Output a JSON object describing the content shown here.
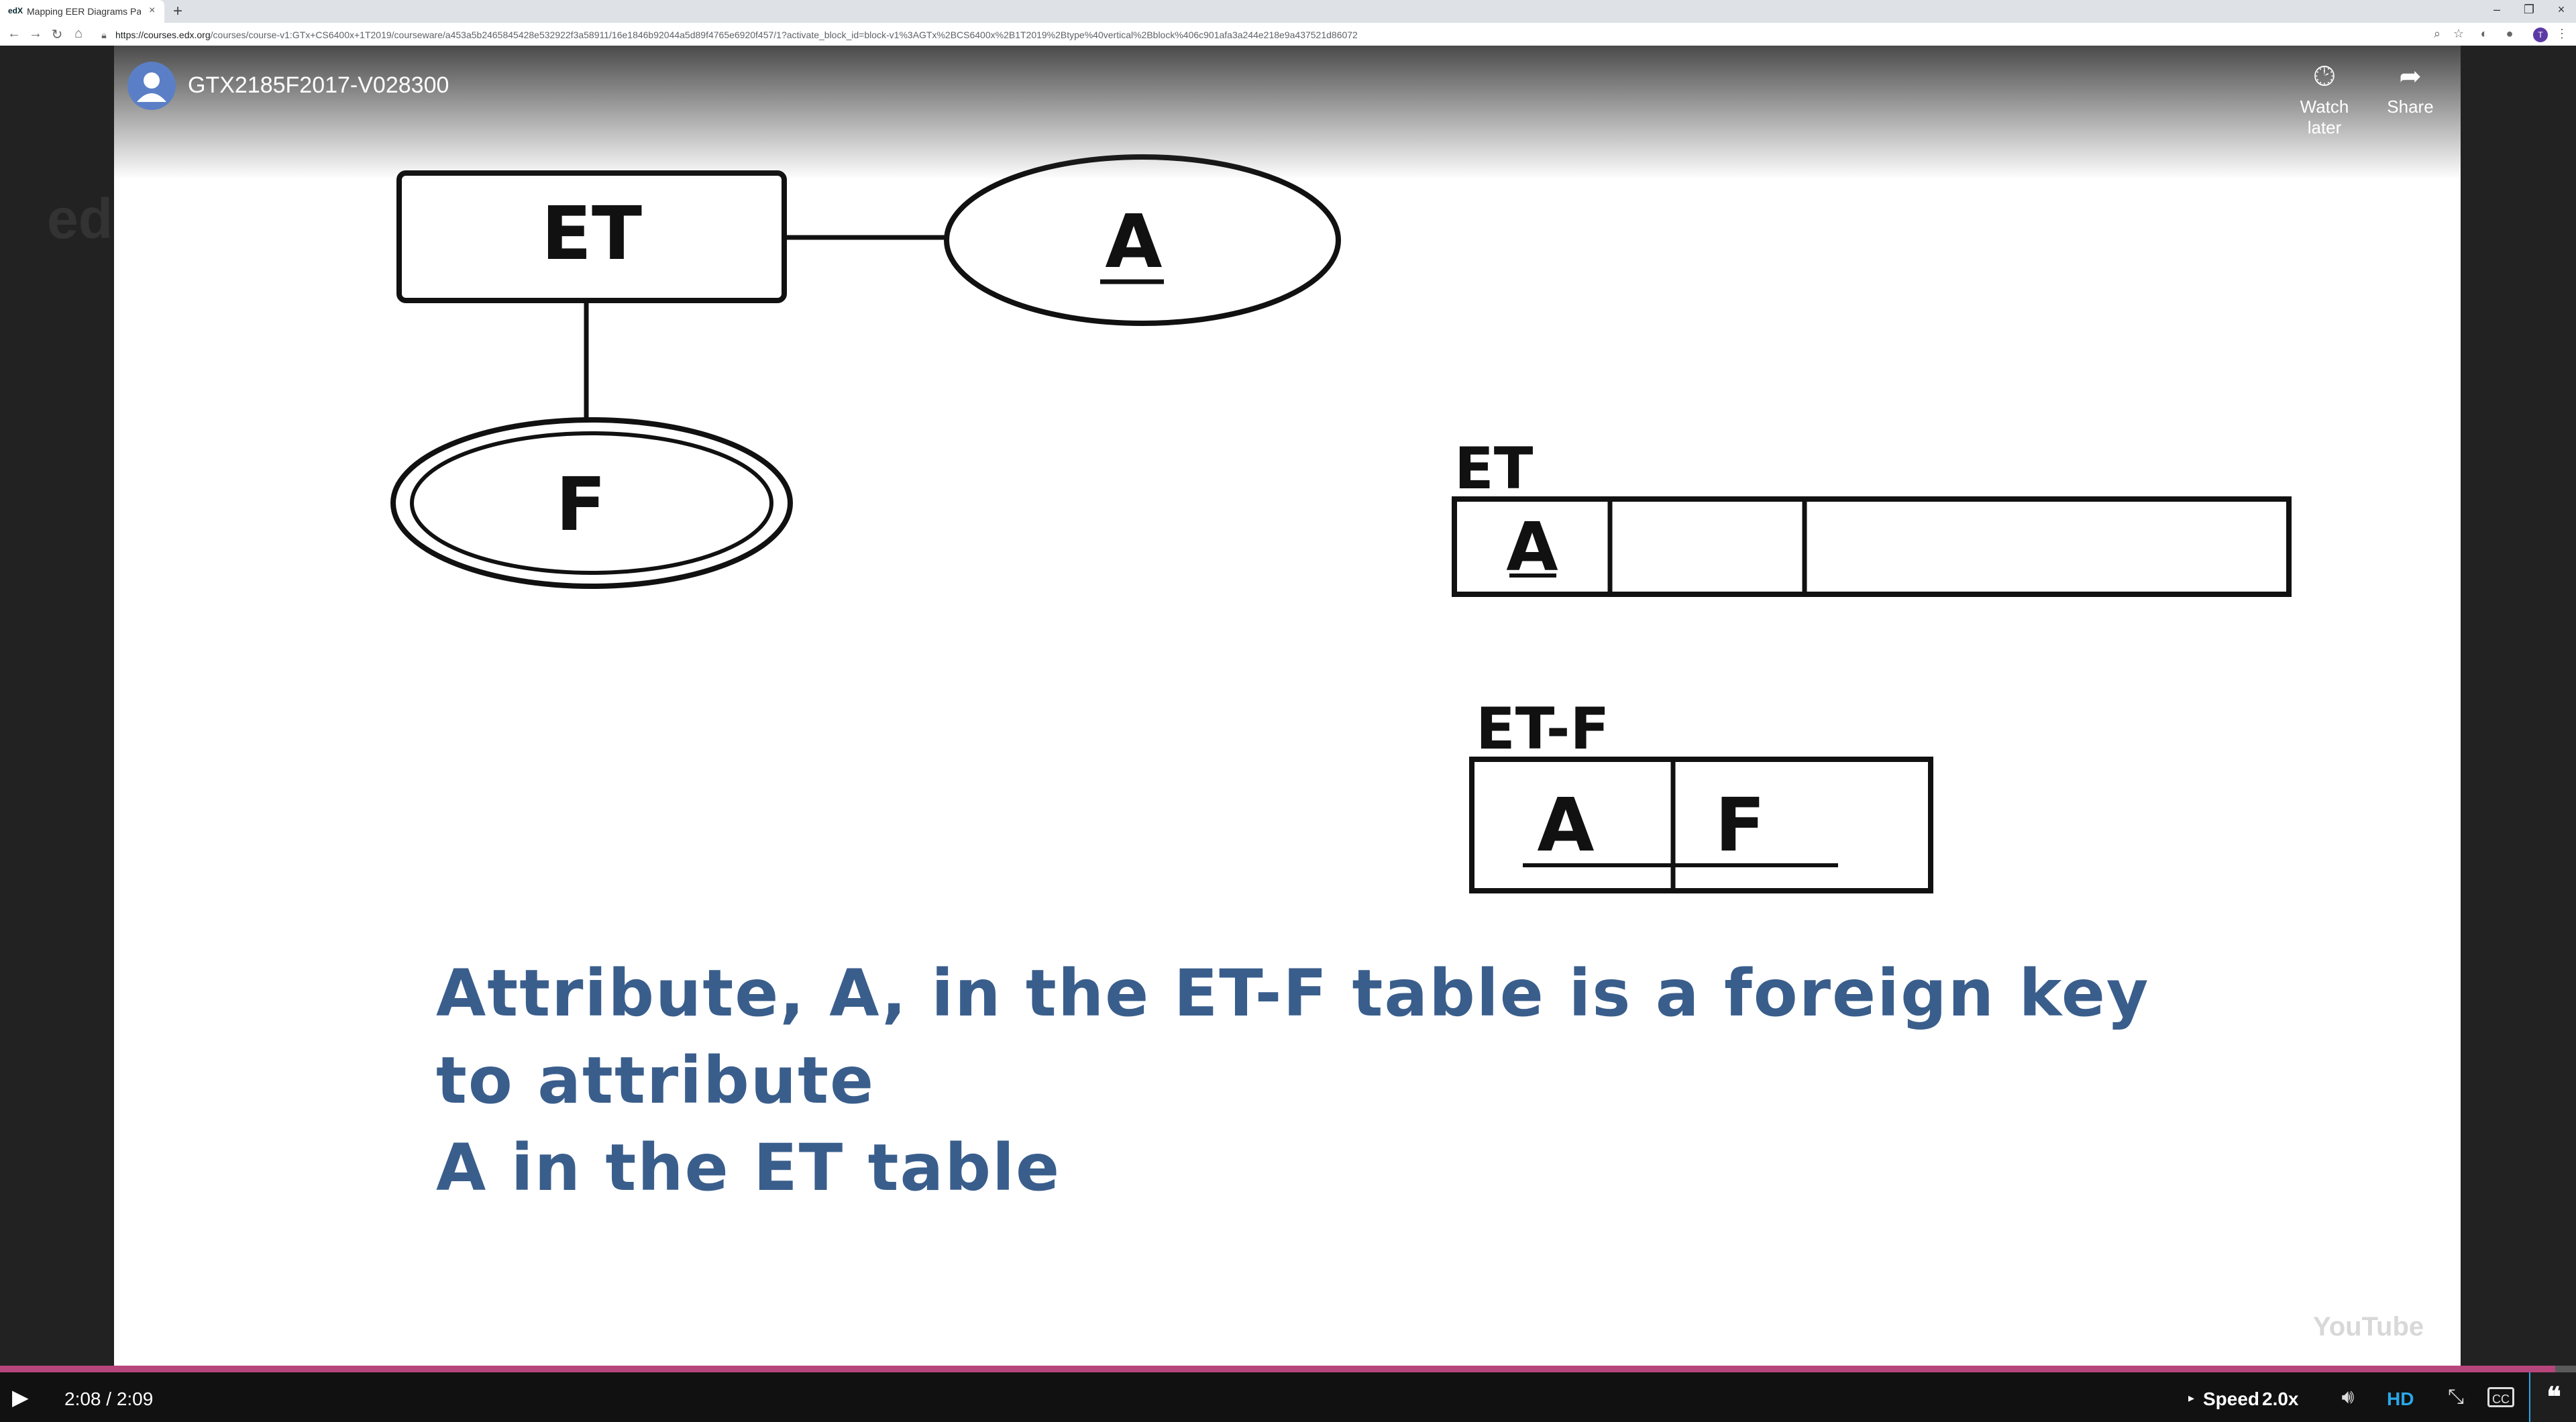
{
  "browser": {
    "tab_title": "Mapping EER Diagrams Part I | C",
    "tab_favicon": "edX",
    "new_tab": "+",
    "url_host": "https://courses.edx.org",
    "url_path": "/courses/course-v1:GTx+CS6400x+1T2019/courseware/a453a5b2465845428e532922f3a58911/16e1846b92044a5d89f4765e6920f457/1?activate_block_id=block-v1%3AGTx%2BCS6400x%2B1T2019%2Btype%40vertical%2Bblock%406c901afa3a244e218e9a437521d86072",
    "profile_initial": "T"
  },
  "background_page": {
    "logo": "ed"
  },
  "video": {
    "title": "GTX2185F2017-V028300",
    "watch_later_label": "Watch later",
    "share_label": "Share",
    "youtube_watermark": "YouTube"
  },
  "slide": {
    "entity_label": "ET",
    "attribute_label": "A",
    "multivalued_label": "F",
    "table1_name": "ET",
    "table1_col1": "A",
    "table2_name": "ET-F",
    "table2_col1": "A",
    "table2_col2": "F",
    "caption_line1": "Attribute, A, in the ET-F table is a foreign key to attribute",
    "caption_line2": "A in the ET table"
  },
  "player": {
    "time": "2:08 / 2:09",
    "progress": 0.992,
    "speed_label": "Speed",
    "speed_value": "2.0x",
    "hd_label": "HD",
    "cc_label": "CC"
  },
  "icons": {
    "back": "back-arrow-icon",
    "forward": "forward-arrow-icon",
    "reload": "reload-icon",
    "home": "home-icon",
    "lock": "lock-icon",
    "zoom": "zoom-icon",
    "star": "star-icon",
    "clock": "clock-icon",
    "share": "share-arrow-icon",
    "play": "play-icon",
    "volume": "volume-icon",
    "fullscreen": "exit-fullscreen-icon",
    "transcript": "transcript-quote-icon"
  }
}
